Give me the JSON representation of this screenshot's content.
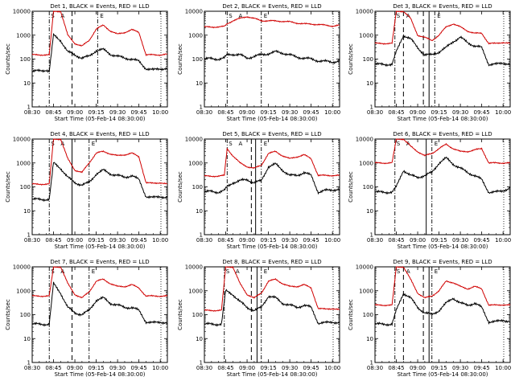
{
  "figure": {
    "ylabel": "Counts/sec",
    "xlabel": "Start Time (05-Feb-14 08:30:00)",
    "x_ticks": [
      "08:30",
      "08:45",
      "09:00",
      "09:15",
      "09:30",
      "09:45",
      "10:00"
    ],
    "y_ticks": [
      "1",
      "10",
      "100",
      "1000",
      "10000"
    ],
    "flag_glyphs": [
      "S",
      "A",
      "E"
    ]
  },
  "chart_data": [
    {
      "type": "line",
      "title": "Det 1, BLACK = Events, RED = LLD",
      "xlabel": "Start Time (05-Feb-14 08:30:00)",
      "ylabel": "Counts/sec",
      "x_range_min": [
        0,
        95
      ],
      "ylim": [
        1,
        10000
      ],
      "log_y": true,
      "saa_min": [
        12,
        46
      ],
      "dashed_min": [
        28
      ],
      "solid_min": [],
      "series": [
        {
          "name": "Events",
          "color": "#000000",
          "min": [
            0,
            10,
            12,
            15,
            20,
            25,
            30,
            35,
            40,
            45,
            50,
            55,
            60,
            65,
            70,
            75,
            80,
            85,
            90,
            95
          ],
          "values": [
            30,
            35,
            30,
            1000,
            600,
            200,
            150,
            110,
            130,
            230,
            250,
            160,
            130,
            110,
            100,
            80,
            40,
            35,
            40,
            40
          ]
        },
        {
          "name": "LLD",
          "color": "#d00000",
          "min": [
            0,
            10,
            12,
            15,
            20,
            25,
            30,
            35,
            40,
            45,
            50,
            55,
            60,
            65,
            70,
            75,
            80,
            85,
            90,
            95
          ],
          "values": [
            150,
            150,
            150,
            10000,
            10000,
            1000,
            450,
            350,
            600,
            1800,
            2600,
            1500,
            1100,
            1300,
            1700,
            1300,
            150,
            150,
            150,
            160
          ]
        }
      ]
    },
    {
      "type": "line",
      "title": "Det 2, BLACK = Events, RED = LLD",
      "xlabel": "Start Time (05-Feb-14 08:30:00)",
      "ylabel": "Counts/sec",
      "x_range_min": [
        0,
        95
      ],
      "ylim": [
        1,
        10000
      ],
      "log_y": true,
      "saa_min": [
        16,
        40
      ],
      "dashed_min": [],
      "solid_min": [],
      "series": [
        {
          "name": "Events",
          "color": "#000000",
          "min": [
            0,
            5,
            10,
            14,
            16,
            20,
            25,
            30,
            35,
            40,
            45,
            50,
            55,
            60,
            65,
            70,
            75,
            80,
            85,
            90,
            95
          ],
          "values": [
            100,
            105,
            100,
            110,
            150,
            160,
            150,
            110,
            130,
            150,
            170,
            200,
            180,
            150,
            120,
            110,
            100,
            85,
            80,
            75,
            85
          ]
        },
        {
          "name": "LLD",
          "color": "#d00000",
          "min": [
            0,
            5,
            10,
            14,
            16,
            20,
            25,
            30,
            35,
            40,
            45,
            50,
            55,
            60,
            65,
            70,
            75,
            80,
            85,
            90,
            95
          ],
          "values": [
            2200,
            2200,
            2200,
            2300,
            3000,
            4000,
            5000,
            6000,
            5000,
            4000,
            4000,
            3900,
            3800,
            3600,
            3200,
            3000,
            2900,
            2800,
            2600,
            2400,
            2600
          ]
        }
      ]
    },
    {
      "type": "line",
      "title": "Det 3, BLACK = Events, RED = LLD",
      "xlabel": "Start Time (05-Feb-14 08:30:00)",
      "ylabel": "Counts/sec",
      "x_range_min": [
        0,
        95
      ],
      "ylim": [
        1,
        10000
      ],
      "log_y": true,
      "saa_min": [
        14,
        42
      ],
      "dashed_min": [
        20,
        34
      ],
      "solid_min": [
        38
      ],
      "series": [
        {
          "name": "Events",
          "color": "#000000",
          "min": [
            0,
            10,
            12,
            15,
            20,
            25,
            30,
            35,
            40,
            45,
            50,
            55,
            60,
            65,
            70,
            75,
            80,
            85,
            90,
            95
          ],
          "values": [
            60,
            60,
            60,
            200,
            1000,
            700,
            300,
            150,
            150,
            200,
            300,
            550,
            800,
            500,
            350,
            300,
            60,
            60,
            70,
            60
          ]
        },
        {
          "name": "LLD",
          "color": "#d00000",
          "min": [
            0,
            10,
            12,
            15,
            20,
            25,
            30,
            35,
            40,
            45,
            50,
            55,
            60,
            65,
            70,
            75,
            80,
            85,
            90,
            95
          ],
          "values": [
            450,
            450,
            450,
            10000,
            10000,
            5000,
            1000,
            800,
            600,
            1000,
            2200,
            3000,
            2200,
            1500,
            1200,
            1200,
            450,
            450,
            500,
            450
          ]
        }
      ]
    },
    {
      "type": "line",
      "title": "Det 4, BLACK = Events, RED = LLD",
      "xlabel": "Start Time (05-Feb-14 08:30:00)",
      "ylabel": "Counts/sec",
      "x_range_min": [
        0,
        95
      ],
      "ylim": [
        1,
        10000
      ],
      "log_y": true,
      "saa_min": [
        12,
        40
      ],
      "dashed_min": [],
      "solid_min": [
        28
      ],
      "series": [
        {
          "name": "Events",
          "color": "#000000",
          "min": [
            0,
            10,
            12,
            15,
            20,
            25,
            30,
            35,
            40,
            45,
            50,
            55,
            60,
            65,
            70,
            75,
            80,
            85,
            90,
            95
          ],
          "values": [
            30,
            30,
            30,
            1000,
            600,
            250,
            150,
            120,
            150,
            350,
            500,
            350,
            300,
            250,
            300,
            200,
            40,
            35,
            40,
            35
          ]
        },
        {
          "name": "LLD",
          "color": "#d00000",
          "min": [
            0,
            10,
            12,
            15,
            20,
            25,
            30,
            35,
            40,
            45,
            50,
            55,
            60,
            65,
            70,
            75,
            80,
            85,
            90,
            95
          ],
          "values": [
            130,
            130,
            130,
            10000,
            10000,
            1500,
            500,
            400,
            1000,
            2600,
            3000,
            2400,
            2000,
            2200,
            2600,
            1800,
            150,
            140,
            150,
            130
          ]
        }
      ]
    },
    {
      "type": "line",
      "title": "Det 5, BLACK = Events, RED = LLD",
      "xlabel": "Start Time (05-Feb-14 08:30:00)",
      "ylabel": "Counts/sec",
      "x_range_min": [
        0,
        95
      ],
      "ylim": [
        1,
        10000
      ],
      "log_y": true,
      "saa_min": [
        16,
        40
      ],
      "dashed_min": [
        33
      ],
      "solid_min": [
        36
      ],
      "series": [
        {
          "name": "Events",
          "color": "#000000",
          "min": [
            0,
            5,
            10,
            14,
            16,
            20,
            25,
            30,
            35,
            40,
            45,
            50,
            55,
            60,
            65,
            70,
            75,
            80,
            85,
            90,
            95
          ],
          "values": [
            60,
            65,
            60,
            70,
            100,
            150,
            180,
            200,
            150,
            180,
            700,
            900,
            500,
            300,
            300,
            400,
            300,
            60,
            70,
            75,
            80
          ]
        },
        {
          "name": "LLD",
          "color": "#d00000",
          "min": [
            0,
            5,
            10,
            14,
            16,
            20,
            25,
            30,
            35,
            40,
            45,
            50,
            55,
            60,
            65,
            70,
            75,
            80,
            85,
            90,
            95
          ],
          "values": [
            280,
            280,
            280,
            300,
            4000,
            2000,
            1000,
            700,
            600,
            800,
            2500,
            3000,
            2000,
            1500,
            1800,
            2200,
            1500,
            300,
            300,
            300,
            300
          ]
        }
      ]
    },
    {
      "type": "line",
      "title": "Det 6, BLACK = Events, RED = LLD",
      "xlabel": "Start Time (05-Feb-14 08:30:00)",
      "ylabel": "Counts/sec",
      "x_range_min": [
        0,
        95
      ],
      "ylim": [
        1,
        10000
      ],
      "log_y": true,
      "saa_min": [
        14,
        40
      ],
      "dashed_min": [],
      "solid_min": [
        36
      ],
      "series": [
        {
          "name": "Events",
          "color": "#000000",
          "min": [
            0,
            10,
            12,
            15,
            20,
            25,
            30,
            35,
            40,
            45,
            50,
            55,
            60,
            65,
            70,
            75,
            80,
            85,
            90,
            95
          ],
          "values": [
            60,
            60,
            60,
            100,
            500,
            300,
            250,
            300,
            400,
            1000,
            1600,
            900,
            600,
            400,
            300,
            200,
            60,
            60,
            70,
            90
          ]
        },
        {
          "name": "LLD",
          "color": "#d00000",
          "min": [
            0,
            10,
            12,
            15,
            20,
            25,
            30,
            35,
            40,
            45,
            50,
            55,
            60,
            65,
            70,
            75,
            80,
            85,
            90,
            95
          ],
          "values": [
            1000,
            1000,
            1000,
            10000,
            10000,
            5000,
            3000,
            2000,
            2500,
            4000,
            6000,
            4000,
            3000,
            3000,
            3500,
            4000,
            1000,
            1000,
            1000,
            1000
          ]
        }
      ]
    },
    {
      "type": "line",
      "title": "Det 7, BLACK = Events, RED = LLD",
      "xlabel": "Start Time (05-Feb-14 08:30:00)",
      "ylabel": "Counts/sec",
      "x_range_min": [
        0,
        95
      ],
      "ylim": [
        1,
        10000
      ],
      "log_y": true,
      "saa_min": [
        12,
        40
      ],
      "dashed_min": [
        28
      ],
      "solid_min": [],
      "series": [
        {
          "name": "Events",
          "color": "#000000",
          "min": [
            0,
            10,
            12,
            15,
            20,
            25,
            30,
            35,
            40,
            45,
            50,
            55,
            60,
            65,
            70,
            75,
            80,
            85,
            90,
            95
          ],
          "values": [
            40,
            40,
            40,
            2000,
            800,
            200,
            120,
            100,
            150,
            400,
            500,
            300,
            250,
            200,
            200,
            150,
            50,
            45,
            50,
            45
          ]
        },
        {
          "name": "LLD",
          "color": "#d00000",
          "min": [
            0,
            10,
            12,
            15,
            20,
            25,
            30,
            35,
            40,
            45,
            50,
            55,
            60,
            65,
            70,
            75,
            80,
            85,
            90,
            95
          ],
          "values": [
            600,
            600,
            600,
            10000,
            10000,
            2000,
            700,
            500,
            900,
            2500,
            3000,
            2000,
            1500,
            1500,
            1800,
            1300,
            600,
            600,
            600,
            600
          ]
        }
      ]
    },
    {
      "type": "line",
      "title": "Det 8, BLACK = Events, RED = LLD",
      "xlabel": "Start Time (05-Feb-14 08:30:00)",
      "ylabel": "Counts/sec",
      "x_range_min": [
        0,
        95
      ],
      "ylim": [
        1,
        10000
      ],
      "log_y": true,
      "saa_min": [
        14,
        40
      ],
      "dashed_min": [
        33
      ],
      "solid_min": [
        37
      ],
      "series": [
        {
          "name": "Events",
          "color": "#000000",
          "min": [
            0,
            10,
            12,
            15,
            20,
            25,
            30,
            35,
            40,
            45,
            50,
            55,
            60,
            65,
            70,
            75,
            80,
            85,
            90,
            95
          ],
          "values": [
            40,
            40,
            40,
            1000,
            700,
            350,
            200,
            150,
            200,
            600,
            500,
            300,
            250,
            200,
            250,
            200,
            45,
            45,
            50,
            45
          ]
        },
        {
          "name": "LLD",
          "color": "#d00000",
          "min": [
            0,
            10,
            12,
            15,
            20,
            25,
            30,
            35,
            40,
            45,
            50,
            55,
            60,
            65,
            70,
            75,
            80,
            85,
            90,
            95
          ],
          "values": [
            150,
            150,
            150,
            10000,
            10000,
            2000,
            700,
            500,
            800,
            2500,
            3000,
            2000,
            1500,
            1500,
            1800,
            1300,
            180,
            170,
            180,
            160
          ]
        }
      ]
    },
    {
      "type": "line",
      "title": "Det 9, BLACK = Events, RED = LLD",
      "xlabel": "Start Time (05-Feb-14 08:30:00)",
      "ylabel": "Counts/sec",
      "x_range_min": [
        0,
        95
      ],
      "ylim": [
        1,
        10000
      ],
      "log_y": true,
      "saa_min": [
        14,
        40
      ],
      "dashed_min": [
        20,
        34
      ],
      "solid_min": [
        38
      ],
      "series": [
        {
          "name": "Events",
          "color": "#000000",
          "min": [
            0,
            10,
            12,
            15,
            20,
            25,
            30,
            35,
            40,
            45,
            50,
            55,
            60,
            65,
            70,
            75,
            80,
            85,
            90,
            95
          ],
          "values": [
            40,
            40,
            40,
            150,
            800,
            500,
            200,
            120,
            100,
            150,
            300,
            500,
            300,
            250,
            300,
            200,
            50,
            50,
            60,
            50
          ]
        },
        {
          "name": "LLD",
          "color": "#d00000",
          "min": [
            0,
            10,
            12,
            15,
            20,
            25,
            30,
            35,
            40,
            45,
            50,
            55,
            60,
            65,
            70,
            75,
            80,
            85,
            90,
            95
          ],
          "values": [
            250,
            250,
            250,
            10000,
            10000,
            3000,
            800,
            500,
            600,
            1000,
            2500,
            2200,
            1500,
            1200,
            1500,
            1200,
            250,
            250,
            260,
            250
          ]
        }
      ]
    }
  ]
}
